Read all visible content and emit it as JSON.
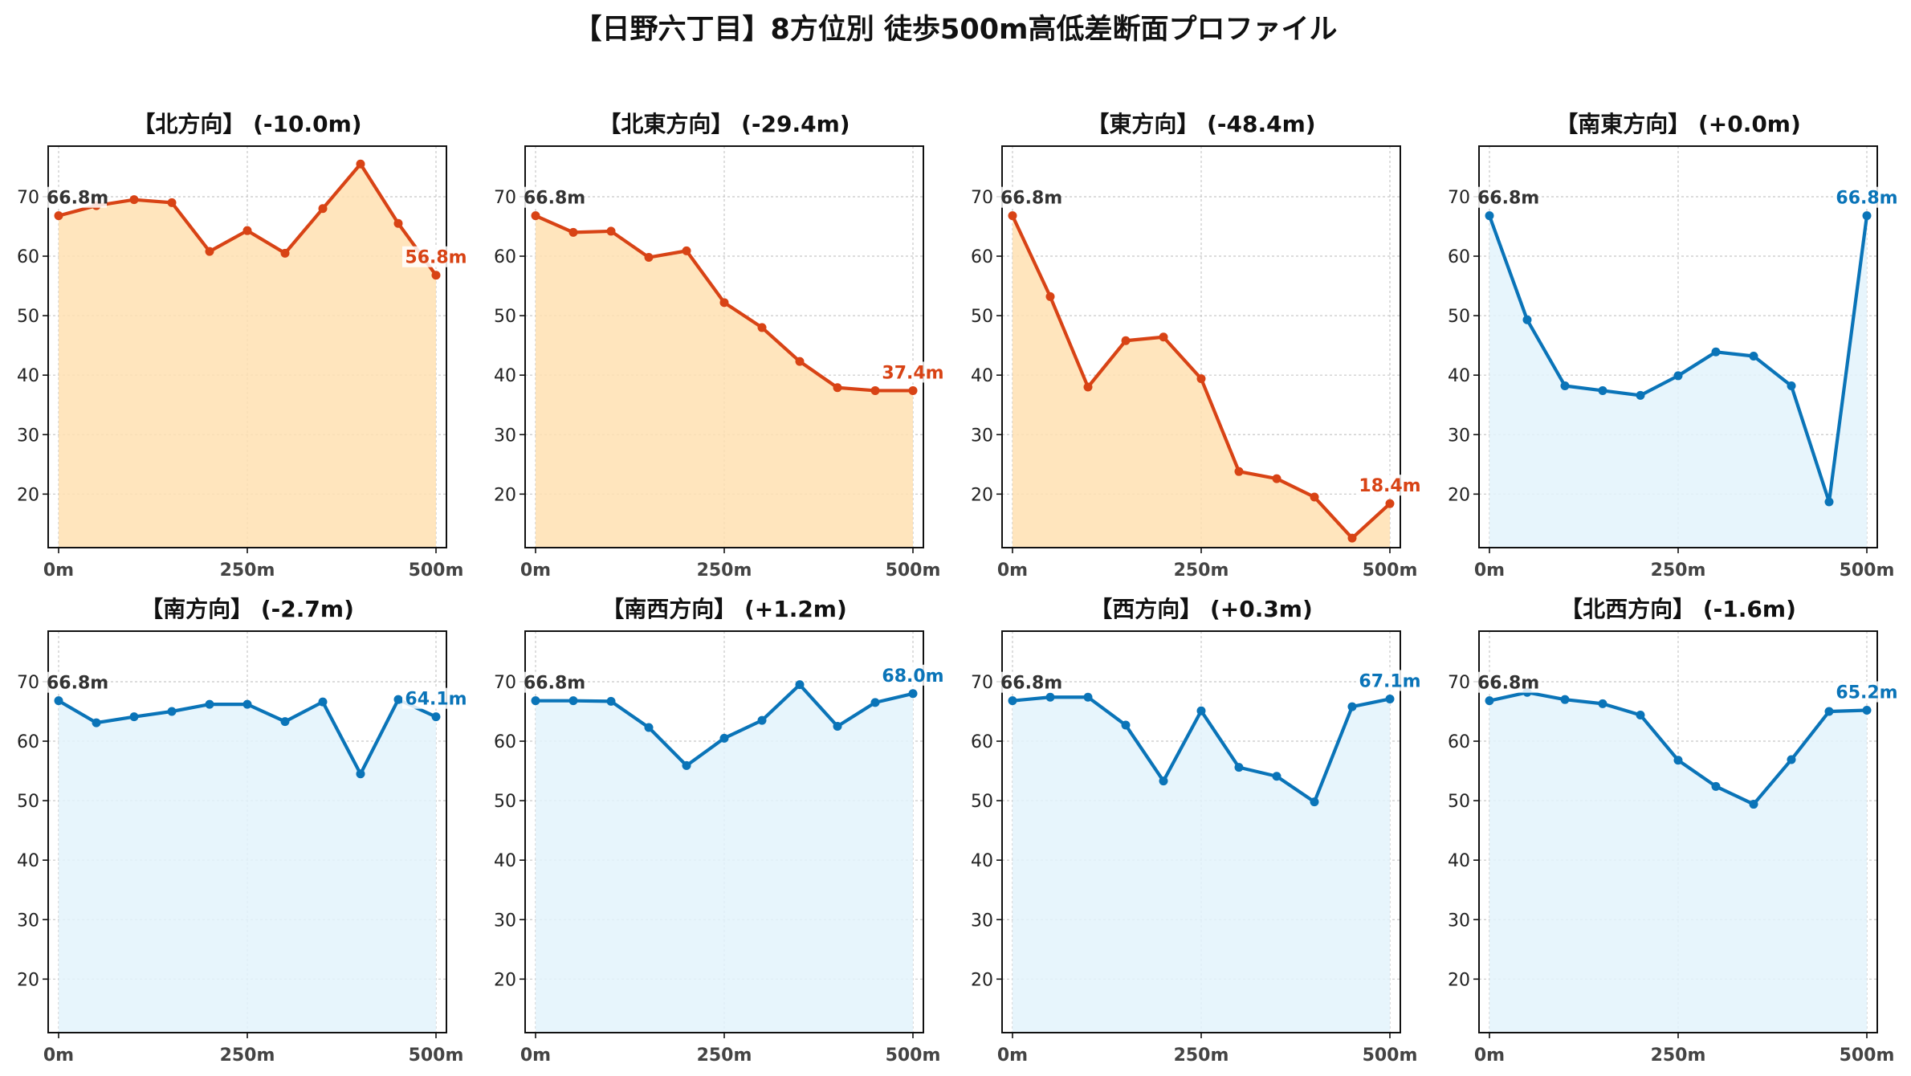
{
  "suptitle": "【日野六丁目】8方位別 徒歩500m高低差断面プロファイル",
  "colors": {
    "down_line": "#d84315",
    "down_fill": "#ffe0b2",
    "up_line": "#0a74b8",
    "up_fill": "#e3f3fb",
    "start_label": "#333333"
  },
  "chart_data": [
    {
      "type": "line",
      "title": "【北方向】 (-10.0m)",
      "start_label": "66.8m",
      "end_label": "56.8m",
      "trend": "down",
      "x": [
        0,
        50,
        100,
        150,
        200,
        250,
        300,
        350,
        400,
        450,
        500
      ],
      "y": [
        66.8,
        68.5,
        69.5,
        69.0,
        60.8,
        64.3,
        60.5,
        68.0,
        75.5,
        65.5,
        56.8
      ],
      "ylim": [
        11.0,
        78.5
      ],
      "yticks": [
        20,
        30,
        40,
        50,
        60,
        70
      ],
      "xticks": [
        "0m",
        "250m",
        "500m"
      ],
      "grid": true
    },
    {
      "type": "line",
      "title": "【北東方向】 (-29.4m)",
      "start_label": "66.8m",
      "end_label": "37.4m",
      "trend": "down",
      "x": [
        0,
        50,
        100,
        150,
        200,
        250,
        300,
        350,
        400,
        450,
        500
      ],
      "y": [
        66.8,
        64.0,
        64.2,
        59.8,
        60.9,
        52.2,
        48.0,
        42.3,
        37.9,
        37.4,
        37.4
      ],
      "ylim": [
        11.0,
        78.5
      ],
      "yticks": [
        20,
        30,
        40,
        50,
        60,
        70
      ],
      "xticks": [
        "0m",
        "250m",
        "500m"
      ],
      "grid": true
    },
    {
      "type": "line",
      "title": "【東方向】 (-48.4m)",
      "start_label": "66.8m",
      "end_label": "18.4m",
      "trend": "down",
      "x": [
        0,
        50,
        100,
        150,
        200,
        250,
        300,
        350,
        400,
        450,
        500
      ],
      "y": [
        66.8,
        53.2,
        38.0,
        45.8,
        46.4,
        39.4,
        23.8,
        22.6,
        19.5,
        12.6,
        18.4
      ],
      "ylim": [
        11.0,
        78.5
      ],
      "yticks": [
        20,
        30,
        40,
        50,
        60,
        70
      ],
      "xticks": [
        "0m",
        "250m",
        "500m"
      ],
      "grid": true
    },
    {
      "type": "line",
      "title": "【南東方向】 (+0.0m)",
      "start_label": "66.8m",
      "end_label": "66.8m",
      "trend": "up",
      "x": [
        0,
        50,
        100,
        150,
        200,
        250,
        300,
        350,
        400,
        450,
        500
      ],
      "y": [
        66.8,
        49.3,
        38.2,
        37.4,
        36.6,
        39.9,
        43.9,
        43.2,
        38.2,
        18.7,
        66.8
      ],
      "ylim": [
        11.0,
        78.5
      ],
      "yticks": [
        20,
        30,
        40,
        50,
        60,
        70
      ],
      "xticks": [
        "0m",
        "250m",
        "500m"
      ],
      "grid": true
    },
    {
      "type": "line",
      "title": "【南方向】 (-2.7m)",
      "start_label": "66.8m",
      "end_label": "64.1m",
      "trend": "up",
      "x": [
        0,
        50,
        100,
        150,
        200,
        250,
        300,
        350,
        400,
        450,
        500
      ],
      "y": [
        66.8,
        63.1,
        64.1,
        65.0,
        66.2,
        66.2,
        63.3,
        66.6,
        54.5,
        67.0,
        64.1
      ],
      "ylim": [
        11.0,
        78.5
      ],
      "yticks": [
        20,
        30,
        40,
        50,
        60,
        70
      ],
      "xticks": [
        "0m",
        "250m",
        "500m"
      ],
      "grid": true
    },
    {
      "type": "line",
      "title": "【南西方向】 (+1.2m)",
      "start_label": "66.8m",
      "end_label": "68.0m",
      "trend": "up",
      "x": [
        0,
        50,
        100,
        150,
        200,
        250,
        300,
        350,
        400,
        450,
        500
      ],
      "y": [
        66.8,
        66.8,
        66.7,
        62.3,
        55.9,
        60.5,
        63.5,
        69.5,
        62.5,
        66.5,
        68.0
      ],
      "ylim": [
        11.0,
        78.5
      ],
      "yticks": [
        20,
        30,
        40,
        50,
        60,
        70
      ],
      "xticks": [
        "0m",
        "250m",
        "500m"
      ],
      "grid": true
    },
    {
      "type": "line",
      "title": "【西方向】 (+0.3m)",
      "start_label": "66.8m",
      "end_label": "67.1m",
      "trend": "up",
      "x": [
        0,
        50,
        100,
        150,
        200,
        250,
        300,
        350,
        400,
        450,
        500
      ],
      "y": [
        66.8,
        67.4,
        67.4,
        62.7,
        53.3,
        65.1,
        55.6,
        54.1,
        49.8,
        65.8,
        67.1
      ],
      "ylim": [
        11.0,
        78.5
      ],
      "yticks": [
        20,
        30,
        40,
        50,
        60,
        70
      ],
      "xticks": [
        "0m",
        "250m",
        "500m"
      ],
      "grid": true
    },
    {
      "type": "line",
      "title": "【北西方向】 (-1.6m)",
      "start_label": "66.8m",
      "end_label": "65.2m",
      "trend": "up",
      "x": [
        0,
        50,
        100,
        150,
        200,
        250,
        300,
        350,
        400,
        450,
        500
      ],
      "y": [
        66.8,
        68.2,
        67.0,
        66.3,
        64.4,
        56.8,
        52.4,
        49.4,
        56.9,
        65.0,
        65.2
      ],
      "ylim": [
        11.0,
        78.5
      ],
      "yticks": [
        20,
        30,
        40,
        50,
        60,
        70
      ],
      "xticks": [
        "0m",
        "250m",
        "500m"
      ],
      "grid": true
    }
  ]
}
